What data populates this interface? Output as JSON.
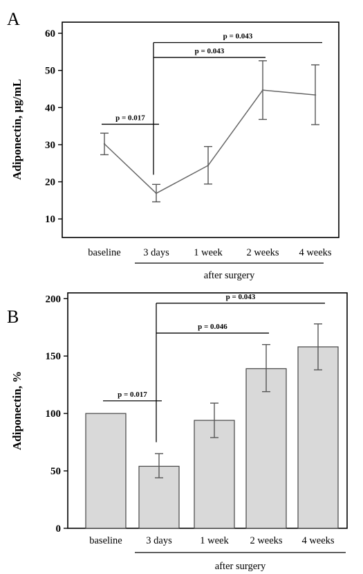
{
  "chart_data": [
    {
      "panel": "A",
      "type": "line",
      "categories": [
        "baseline",
        "3 days",
        "1 week",
        "2 weeks",
        "4 weeks"
      ],
      "values": [
        30.2,
        16.9,
        24.4,
        44.7,
        43.4
      ],
      "error_low": [
        27.3,
        14.6,
        19.4,
        36.8,
        35.4
      ],
      "error_high": [
        33.1,
        19.3,
        29.5,
        52.6,
        51.5
      ],
      "ylabel": "Adiponectin, µg/mL",
      "xlabel": "after surgery",
      "ylim": [
        5,
        63
      ],
      "yticks": [
        10,
        20,
        30,
        40,
        50,
        60
      ],
      "grid": false,
      "significance": [
        {
          "from": "baseline",
          "to": "3 days",
          "label": "p = 0.017",
          "level": 35.5
        },
        {
          "from": "3 days",
          "to": "2 weeks",
          "label": "p = 0.043",
          "level": 53.5
        },
        {
          "from": "3 days",
          "to": "4 weeks",
          "label": "p = 0.043",
          "level": 57.5
        }
      ]
    },
    {
      "panel": "B",
      "type": "bar",
      "categories": [
        "baseline",
        "3 days",
        "1 week",
        "2 weeks",
        "4 weeks"
      ],
      "values": [
        100,
        54,
        94,
        139,
        158
      ],
      "error_low": [
        100,
        44,
        79,
        119,
        138
      ],
      "error_high": [
        100,
        65,
        109,
        160,
        178
      ],
      "ylabel": "Adiponectin, %",
      "xlabel": "after surgery",
      "ylim": [
        0,
        205
      ],
      "yticks": [
        0,
        50,
        100,
        150,
        200
      ],
      "grid": false,
      "significance": [
        {
          "from": "baseline",
          "to": "3 days",
          "label": "p = 0.017",
          "level": 111
        },
        {
          "from": "3 days",
          "to": "2 weeks",
          "label": "p = 0.046",
          "level": 170
        },
        {
          "from": "3 days",
          "to": "4 weeks",
          "label": "p = 0.043",
          "level": 196
        }
      ]
    }
  ]
}
